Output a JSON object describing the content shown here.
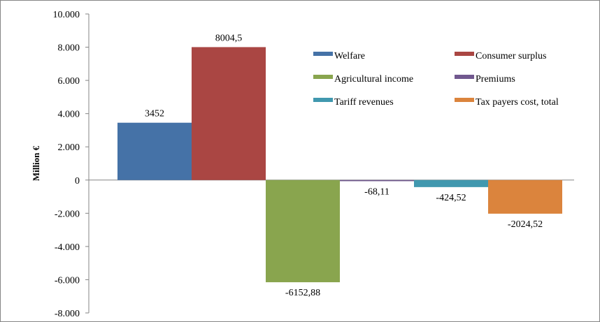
{
  "chart_data": {
    "type": "bar",
    "ylabel": "Million €",
    "ylim": [
      -8000,
      10000
    ],
    "yticks": [
      10000,
      8000,
      6000,
      4000,
      2000,
      0,
      -2000,
      -4000,
      -6000,
      -8000
    ],
    "ytick_labels": [
      "10.000",
      "8.000",
      "6.000",
      "4.000",
      "2.000",
      "0",
      "-2.000",
      "-4.000",
      "-6.000",
      "-8.000"
    ],
    "grid": false,
    "legend_position": "top-right",
    "series": [
      {
        "name": "Welfare",
        "value": 3452,
        "label": "3452",
        "color": "#4572A7"
      },
      {
        "name": "Consumer surplus",
        "value": 8004.5,
        "label": "8004,5",
        "color": "#AA4643"
      },
      {
        "name": "Agricultural income",
        "value": -6152.88,
        "label": "-6152,88",
        "color": "#89A54E"
      },
      {
        "name": "Premiums",
        "value": -68.11,
        "label": "-68,11",
        "color": "#71588F"
      },
      {
        "name": "Tariff revenues",
        "value": -424.52,
        "label": "-424,52",
        "color": "#4198AF"
      },
      {
        "name": "Tax payers cost, total",
        "value": -2024.52,
        "label": "-2024,52",
        "color": "#DB843D"
      }
    ]
  }
}
